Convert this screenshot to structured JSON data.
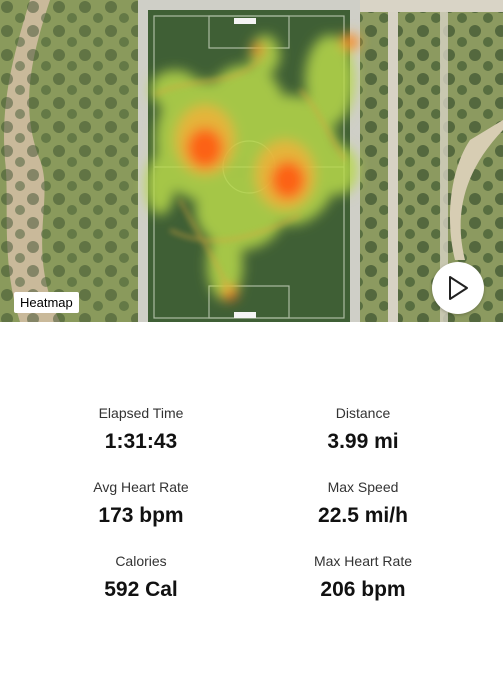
{
  "map": {
    "badge_label": "Heatmap",
    "play_icon": "play-icon"
  },
  "stats": {
    "elapsed_time": {
      "label": "Elapsed Time",
      "value": "1:31:43"
    },
    "distance": {
      "label": "Distance",
      "value": "3.99 mi"
    },
    "avg_heart_rate": {
      "label": "Avg Heart Rate",
      "value": "173 bpm"
    },
    "max_speed": {
      "label": "Max Speed",
      "value": "22.5 mi/h"
    },
    "calories": {
      "label": "Calories",
      "value": "592 Cal"
    },
    "max_heart_rate": {
      "label": "Max Heart Rate",
      "value": "206 bpm"
    }
  },
  "colors": {
    "heat_low": "#b8d94a",
    "heat_mid": "#f0b23a",
    "heat_high": "#ff5a16",
    "field": "#3f5f35"
  }
}
